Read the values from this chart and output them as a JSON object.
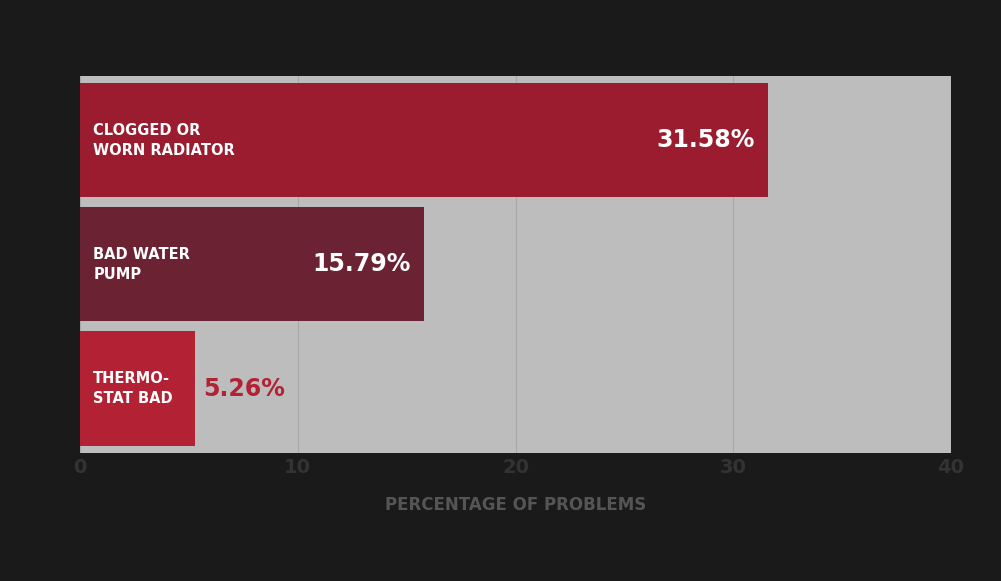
{
  "categories": [
    "CLOGGED OR\nWORN RADIATOR",
    "BAD WATER\nPUMP",
    "THERMO-\nSTAT BAD"
  ],
  "values": [
    31.58,
    15.79,
    5.26
  ],
  "value_labels": [
    "31.58%",
    "15.79%",
    "5.26%"
  ],
  "bar_colors": [
    "#9B1C2E",
    "#6B2232",
    "#B22234"
  ],
  "value_label_colors": [
    "#FFFFFF",
    "#FFFFFF",
    "#B22234"
  ],
  "background_color": "#BDBDBD",
  "plot_bg_color": "#BDBDBD",
  "below_bg_color": "#000000",
  "text_color": "#FFFFFF",
  "xlabel": "PERCENTAGE OF PROBLEMS",
  "xlabel_color": "#555555",
  "xlim": [
    0,
    40
  ],
  "xticks": [
    0,
    10,
    20,
    30,
    40
  ],
  "tick_label_color": "#333333",
  "figsize": [
    10.01,
    5.81
  ],
  "dpi": 100,
  "bar_height": 0.92,
  "cat_fontsize": 10.5,
  "value_fontsize": 17,
  "xlabel_fontsize": 12,
  "tick_fontsize": 14
}
